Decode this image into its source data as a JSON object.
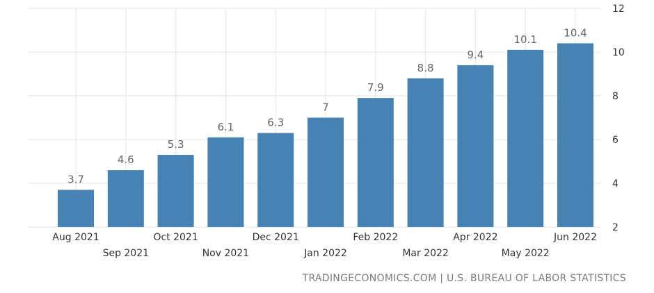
{
  "chart_data": {
    "type": "bar",
    "categories": [
      "Aug 2021",
      "Sep 2021",
      "Oct 2021",
      "Nov 2021",
      "Dec 2021",
      "Jan 2022",
      "Feb 2022",
      "Mar 2022",
      "Apr 2022",
      "May 2022",
      "Jun 2022"
    ],
    "values": [
      3.7,
      4.6,
      5.3,
      6.1,
      6.3,
      7,
      7.9,
      8.8,
      9.4,
      10.1,
      10.4
    ],
    "value_labels": [
      "3.7",
      "4.6",
      "5.3",
      "6.1",
      "6.3",
      "7",
      "7.9",
      "8.8",
      "9.4",
      "10.1",
      "10.4"
    ],
    "ylim": [
      2,
      12
    ],
    "yticks": [
      "2",
      "4",
      "6",
      "8",
      "10",
      "12"
    ],
    "y_axis_side": "right",
    "x_labels_staggered": true,
    "grid": true,
    "bar_color": "#4682b4",
    "grid_color": "#e6e6e6",
    "label_color": "#666666",
    "title": "",
    "xlabel": "",
    "ylabel": ""
  },
  "source": {
    "text": "TRADINGECONOMICS.COM | U.S. BUREAU OF LABOR STATISTICS"
  }
}
